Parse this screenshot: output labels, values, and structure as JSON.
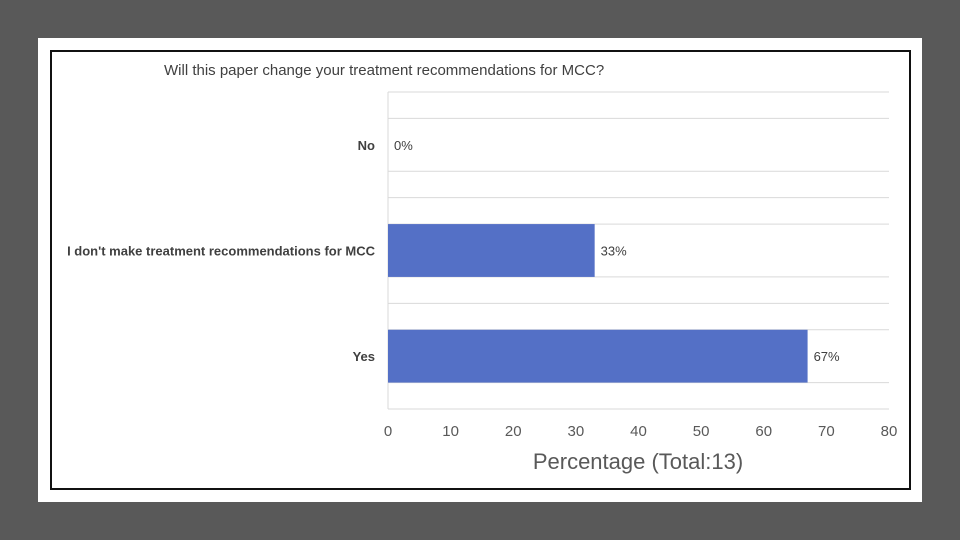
{
  "chart_data": {
    "type": "bar",
    "orientation": "horizontal",
    "title": "Will this paper change your treatment recommendations for MCC?",
    "categories": [
      "No",
      "I don't make treatment recommendations for MCC",
      "Yes"
    ],
    "values": [
      0,
      33,
      67
    ],
    "data_labels": [
      "0%",
      "33%",
      "67%"
    ],
    "xlabel": "Percentage (Total:13)",
    "ylabel": "",
    "xlim": [
      0,
      80
    ],
    "xticks": [
      "0",
      "10",
      "20",
      "30",
      "40",
      "50",
      "60",
      "70",
      "80"
    ],
    "grid": "horizontal",
    "legend": "none",
    "bar_color": "#5470c6"
  }
}
